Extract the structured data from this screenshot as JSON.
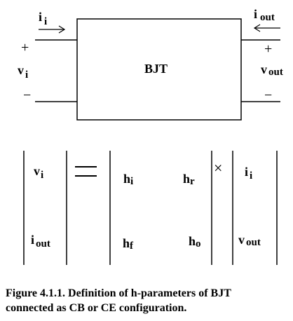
{
  "circuit": {
    "block_label": "BJT",
    "input_current": {
      "main": "i",
      "sub": "i"
    },
    "input_voltage": {
      "main": "v",
      "sub": "i"
    },
    "output_current": {
      "main": "i",
      "sub": "out"
    },
    "output_voltage": {
      "main": "v",
      "sub": "out"
    },
    "plus_sign": "+",
    "minus_sign": "−"
  },
  "equation": {
    "lhs": [
      {
        "main": "v",
        "sub": "i"
      },
      {
        "main": "i",
        "sub": "out"
      }
    ],
    "equals_sign": "=",
    "matrix": [
      {
        "main": "h",
        "sub": "i"
      },
      {
        "main": "h",
        "sub": "r"
      },
      {
        "main": "h",
        "sub": "f"
      },
      {
        "main": "h",
        "sub": "o"
      }
    ],
    "times_sign": "×",
    "rhs": [
      {
        "main": "i",
        "sub": "i"
      },
      {
        "main": "v",
        "sub": "out"
      }
    ]
  },
  "caption": {
    "line1": "Figure 4.1.1. Definition of h-parameters of BJT",
    "line2": "connected as CB or CE configuration."
  }
}
